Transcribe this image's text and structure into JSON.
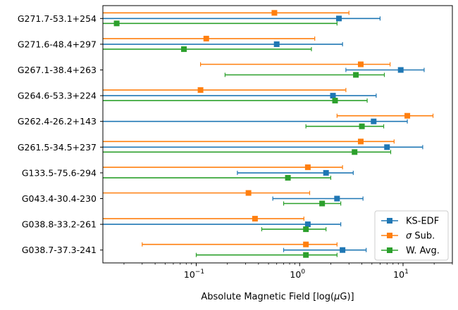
{
  "chart_data": {
    "type": "errorbar",
    "x_scale": "log",
    "xlim": [
      0.0125,
      30
    ],
    "x_major_ticks": [
      {
        "value": 0.1,
        "base": "10",
        "exp": "−1"
      },
      {
        "value": 1,
        "base": "10",
        "exp": "0"
      },
      {
        "value": 10,
        "base": "10",
        "exp": "1"
      }
    ],
    "xlabel_prefix": "Absolute Magnetic Field [log(",
    "xlabel_mu": "μ",
    "xlabel_G": "G",
    "xlabel_suffix": ")]",
    "grid": false,
    "legend_position": "lower-right",
    "categories": [
      "G271.7-53.1+254",
      "G271.6-48.4+297",
      "G267.1-38.4+263",
      "G264.6-53.3+224",
      "G262.4-26.2+143",
      "G261.5-34.5+237",
      "G133.5-75.6-294",
      "G043.4-30.4-230",
      "G038.8-33.2-261",
      "G038.7-37.3-241"
    ],
    "series": [
      {
        "name": "KS-EDF",
        "color": "#1f77b4",
        "values": [
          2.4,
          0.6,
          9.5,
          2.1,
          5.2,
          7.0,
          1.8,
          2.3,
          1.2,
          2.6
        ],
        "lower": [
          0.0125,
          0.0125,
          2.8,
          0.0125,
          0.0125,
          0.0125,
          0.25,
          0.55,
          0.0125,
          0.7
        ],
        "upper": [
          6.0,
          2.6,
          16.0,
          5.5,
          11.0,
          15.5,
          3.3,
          4.1,
          2.5,
          4.4
        ]
      },
      {
        "name_prefix": "σ",
        "name_suffix": " Sub.",
        "color": "#ff7f0e",
        "values": [
          0.57,
          0.125,
          3.9,
          0.11,
          11.0,
          3.9,
          1.2,
          0.32,
          0.37,
          1.15
        ],
        "lower": [
          0.0125,
          0.0125,
          0.11,
          0.0125,
          2.3,
          0.0125,
          0.0125,
          0.0125,
          0.0125,
          0.03
        ],
        "upper": [
          3.0,
          1.4,
          7.5,
          2.8,
          19.5,
          8.2,
          2.6,
          1.25,
          1.1,
          2.3
        ]
      },
      {
        "name": "W. Avg.",
        "color": "#2ca02c",
        "values": [
          0.017,
          0.076,
          3.5,
          2.2,
          4.0,
          3.4,
          0.77,
          1.65,
          1.15,
          1.15
        ],
        "lower": [
          0.0125,
          0.0125,
          0.19,
          0.0125,
          1.15,
          0.0125,
          0.0125,
          0.7,
          0.43,
          0.1
        ],
        "upper": [
          2.3,
          1.3,
          6.6,
          4.5,
          6.5,
          7.6,
          2.0,
          2.5,
          1.8,
          2.3
        ]
      }
    ]
  }
}
